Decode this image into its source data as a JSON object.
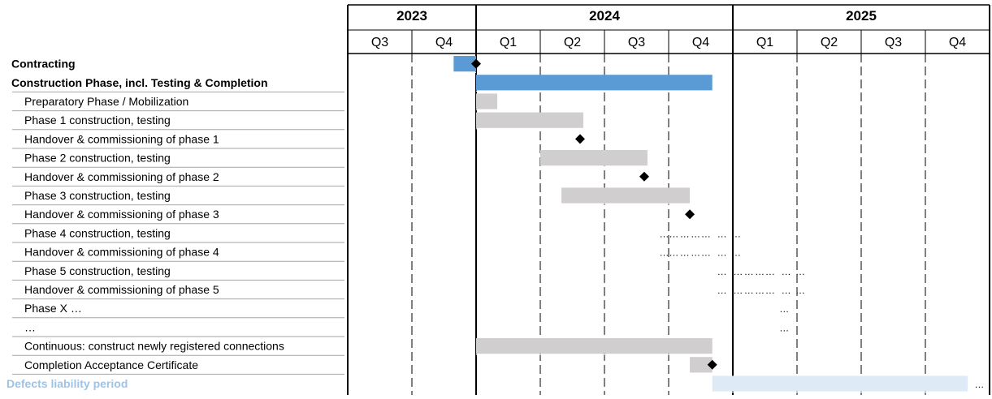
{
  "chart_data": {
    "type": "gantt",
    "years": [
      {
        "label": "2023",
        "quarters": [
          "Q3",
          "Q4"
        ]
      },
      {
        "label": "2024",
        "quarters": [
          "Q1",
          "Q2",
          "Q3",
          "Q4"
        ]
      },
      {
        "label": "2025",
        "quarters": [
          "Q1",
          "Q2",
          "Q3",
          "Q4"
        ]
      }
    ],
    "time_unit": "quarters since start of 2023 Q3",
    "colors": {
      "primary_bar": "#5b9bd5",
      "secondary_bar": "#d0cece",
      "light_bar": "#deebf7",
      "milestone": "#000000",
      "light_text": "#9dc3e6"
    },
    "tasks": [
      {
        "label": "Contracting",
        "style": "bold",
        "bar": {
          "start": 1.65,
          "end": 2.0,
          "color": "primary"
        },
        "milestone": 2.0
      },
      {
        "label": "Construction Phase, incl. Testing & Completion",
        "style": "bold",
        "bar": {
          "start": 2.0,
          "end": 5.68,
          "color": "primary"
        }
      },
      {
        "label": "Preparatory Phase / Mobilization",
        "style": "normal",
        "bar": {
          "start": 2.0,
          "end": 2.33,
          "color": "secondary"
        }
      },
      {
        "label": "Phase 1 construction, testing",
        "style": "normal",
        "bar": {
          "start": 2.0,
          "end": 3.67,
          "color": "secondary"
        }
      },
      {
        "label": "Handover & commissioning of phase 1",
        "style": "normal",
        "milestone": 3.62
      },
      {
        "label": "Phase 2 construction, testing",
        "style": "normal",
        "bar": {
          "start": 3.0,
          "end": 4.67,
          "color": "secondary"
        }
      },
      {
        "label": "Handover & commissioning of phase 2",
        "style": "normal",
        "milestone": 4.62
      },
      {
        "label": "Phase 3 construction, testing",
        "style": "normal",
        "bar": {
          "start": 3.33,
          "end": 5.33,
          "color": "secondary"
        }
      },
      {
        "label": "Handover & commissioning of phase 3",
        "style": "normal",
        "milestone": 5.33
      },
      {
        "label": "Phase 4 construction, testing",
        "style": "normal",
        "ellipsis": [
          4.93,
          5.08,
          5.25,
          5.42,
          5.58,
          5.83,
          6.05
        ]
      },
      {
        "label": "Handover & commissioning of phase 4",
        "style": "normal",
        "ellipsis": [
          4.93,
          5.08,
          5.25,
          5.42,
          5.58,
          5.83,
          6.05
        ]
      },
      {
        "label": "Phase 5 construction, testing",
        "style": "normal",
        "ellipsis": [
          5.83,
          6.08,
          6.25,
          6.42,
          6.58,
          6.83,
          7.05
        ]
      },
      {
        "label": "Handover & commissioning of phase 5",
        "style": "normal",
        "ellipsis": [
          5.83,
          6.08,
          6.25,
          6.42,
          6.58,
          6.83,
          7.05
        ]
      },
      {
        "label": "Phase X …",
        "style": "normal",
        "ellipsis": [
          6.8
        ]
      },
      {
        "label": "…",
        "style": "normal",
        "ellipsis": [
          6.8
        ]
      },
      {
        "label": "Continuous: construct newly registered connections",
        "style": "normal",
        "bar": {
          "start": 2.0,
          "end": 5.68,
          "color": "secondary"
        }
      },
      {
        "label": "Completion Acceptance Certificate",
        "style": "normal",
        "bar": {
          "start": 5.33,
          "end": 5.68,
          "color": "secondary"
        },
        "milestone": 5.68
      },
      {
        "label": "Defects liability period",
        "style": "light",
        "bar": {
          "start": 5.68,
          "end": 9.66,
          "color": "light"
        },
        "ellipsis": [
          9.84
        ]
      }
    ]
  }
}
